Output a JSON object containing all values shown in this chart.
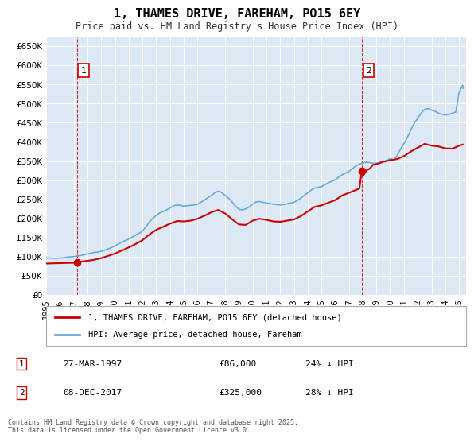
{
  "title": "1, THAMES DRIVE, FAREHAM, PO15 6EY",
  "subtitle": "Price paid vs. HM Land Registry's House Price Index (HPI)",
  "ylabel_ticks": [
    "£0",
    "£50K",
    "£100K",
    "£150K",
    "£200K",
    "£250K",
    "£300K",
    "£350K",
    "£400K",
    "£450K",
    "£500K",
    "£550K",
    "£600K",
    "£650K"
  ],
  "ytick_values": [
    0,
    50000,
    100000,
    150000,
    200000,
    250000,
    300000,
    350000,
    400000,
    450000,
    500000,
    550000,
    600000,
    650000
  ],
  "ylim": [
    0,
    675000
  ],
  "xlim_start": 1995.0,
  "xlim_end": 2025.5,
  "background_color": "#dce9f5",
  "plot_bg_color": "#dce9f5",
  "hpi_line_color": "#6aa8d8",
  "price_line_color": "#cc0000",
  "marker_color": "#cc0000",
  "vline_color": "#cc0000",
  "transaction1": {
    "date_label": "27-MAR-1997",
    "date_num": 1997.23,
    "price": 86000,
    "note": "24% ↓ HPI",
    "marker_num": 1
  },
  "transaction2": {
    "date_label": "08-DEC-2017",
    "date_num": 2017.93,
    "price": 325000,
    "note": "28% ↓ HPI",
    "marker_num": 2
  },
  "legend_line1": "1, THAMES DRIVE, FAREHAM, PO15 6EY (detached house)",
  "legend_line2": "HPI: Average price, detached house, Fareham",
  "footer": "Contains HM Land Registry data © Crown copyright and database right 2025.\nThis data is licensed under the Open Government Licence v3.0.",
  "hpi_data": [
    [
      1995.0,
      97000
    ],
    [
      1995.25,
      96500
    ],
    [
      1995.5,
      96000
    ],
    [
      1995.75,
      95800
    ],
    [
      1996.0,
      96500
    ],
    [
      1996.25,
      97000
    ],
    [
      1996.5,
      98500
    ],
    [
      1996.75,
      99500
    ],
    [
      1997.0,
      100000
    ],
    [
      1997.25,
      101500
    ],
    [
      1997.5,
      103000
    ],
    [
      1997.75,
      105000
    ],
    [
      1998.0,
      107000
    ],
    [
      1998.25,
      109000
    ],
    [
      1998.5,
      111000
    ],
    [
      1998.75,
      112000
    ],
    [
      1999.0,
      114000
    ],
    [
      1999.25,
      117000
    ],
    [
      1999.5,
      120000
    ],
    [
      1999.75,
      124000
    ],
    [
      2000.0,
      128000
    ],
    [
      2000.25,
      133000
    ],
    [
      2000.5,
      138000
    ],
    [
      2000.75,
      142000
    ],
    [
      2001.0,
      146000
    ],
    [
      2001.25,
      151000
    ],
    [
      2001.5,
      156000
    ],
    [
      2001.75,
      161000
    ],
    [
      2002.0,
      167000
    ],
    [
      2002.25,
      178000
    ],
    [
      2002.5,
      190000
    ],
    [
      2002.75,
      200000
    ],
    [
      2003.0,
      208000
    ],
    [
      2003.25,
      214000
    ],
    [
      2003.5,
      218000
    ],
    [
      2003.75,
      222000
    ],
    [
      2004.0,
      227000
    ],
    [
      2004.25,
      233000
    ],
    [
      2004.5,
      235000
    ],
    [
      2004.75,
      234000
    ],
    [
      2005.0,
      232000
    ],
    [
      2005.25,
      233000
    ],
    [
      2005.5,
      234000
    ],
    [
      2005.75,
      235000
    ],
    [
      2006.0,
      237000
    ],
    [
      2006.25,
      242000
    ],
    [
      2006.5,
      248000
    ],
    [
      2006.75,
      254000
    ],
    [
      2007.0,
      260000
    ],
    [
      2007.25,
      267000
    ],
    [
      2007.5,
      271000
    ],
    [
      2007.75,
      268000
    ],
    [
      2008.0,
      260000
    ],
    [
      2008.25,
      253000
    ],
    [
      2008.5,
      243000
    ],
    [
      2008.75,
      232000
    ],
    [
      2009.0,
      224000
    ],
    [
      2009.25,
      222000
    ],
    [
      2009.5,
      225000
    ],
    [
      2009.75,
      230000
    ],
    [
      2010.0,
      237000
    ],
    [
      2010.25,
      243000
    ],
    [
      2010.5,
      244000
    ],
    [
      2010.75,
      242000
    ],
    [
      2011.0,
      240000
    ],
    [
      2011.25,
      239000
    ],
    [
      2011.5,
      237000
    ],
    [
      2011.75,
      236000
    ],
    [
      2012.0,
      235000
    ],
    [
      2012.25,
      236000
    ],
    [
      2012.5,
      238000
    ],
    [
      2012.75,
      240000
    ],
    [
      2013.0,
      242000
    ],
    [
      2013.25,
      247000
    ],
    [
      2013.5,
      253000
    ],
    [
      2013.75,
      260000
    ],
    [
      2014.0,
      267000
    ],
    [
      2014.25,
      274000
    ],
    [
      2014.5,
      279000
    ],
    [
      2014.75,
      281000
    ],
    [
      2015.0,
      283000
    ],
    [
      2015.25,
      288000
    ],
    [
      2015.5,
      293000
    ],
    [
      2015.75,
      297000
    ],
    [
      2016.0,
      301000
    ],
    [
      2016.25,
      308000
    ],
    [
      2016.5,
      314000
    ],
    [
      2016.75,
      318000
    ],
    [
      2017.0,
      323000
    ],
    [
      2017.25,
      330000
    ],
    [
      2017.5,
      337000
    ],
    [
      2017.75,
      342000
    ],
    [
      2018.0,
      345000
    ],
    [
      2018.25,
      347000
    ],
    [
      2018.5,
      346000
    ],
    [
      2018.75,
      344000
    ],
    [
      2019.0,
      344000
    ],
    [
      2019.25,
      347000
    ],
    [
      2019.5,
      349000
    ],
    [
      2019.75,
      352000
    ],
    [
      2020.0,
      356000
    ],
    [
      2020.25,
      353000
    ],
    [
      2020.5,
      365000
    ],
    [
      2020.75,
      382000
    ],
    [
      2021.0,
      396000
    ],
    [
      2021.25,
      413000
    ],
    [
      2021.5,
      432000
    ],
    [
      2021.75,
      450000
    ],
    [
      2022.0,
      462000
    ],
    [
      2022.25,
      476000
    ],
    [
      2022.5,
      485000
    ],
    [
      2022.75,
      487000
    ],
    [
      2023.0,
      483000
    ],
    [
      2023.25,
      480000
    ],
    [
      2023.5,
      475000
    ],
    [
      2023.75,
      472000
    ],
    [
      2024.0,
      470000
    ],
    [
      2024.25,
      472000
    ],
    [
      2024.5,
      475000
    ],
    [
      2024.75,
      478000
    ],
    [
      2025.0,
      530000
    ],
    [
      2025.25,
      548000
    ],
    [
      2025.3,
      540000
    ]
  ],
  "price_data": [
    [
      1995.0,
      82000
    ],
    [
      1995.5,
      82500
    ],
    [
      1996.0,
      83000
    ],
    [
      1996.5,
      83500
    ],
    [
      1997.0,
      84000
    ],
    [
      1997.23,
      86000
    ],
    [
      1997.5,
      87000
    ],
    [
      1998.0,
      89000
    ],
    [
      1998.5,
      92000
    ],
    [
      1999.0,
      96000
    ],
    [
      1999.5,
      102000
    ],
    [
      2000.0,
      108000
    ],
    [
      2000.5,
      116000
    ],
    [
      2001.0,
      124000
    ],
    [
      2001.5,
      133000
    ],
    [
      2002.0,
      143000
    ],
    [
      2002.5,
      158000
    ],
    [
      2003.0,
      170000
    ],
    [
      2003.5,
      178000
    ],
    [
      2004.0,
      186000
    ],
    [
      2004.5,
      193000
    ],
    [
      2005.0,
      192000
    ],
    [
      2005.5,
      194000
    ],
    [
      2006.0,
      199000
    ],
    [
      2006.5,
      207000
    ],
    [
      2007.0,
      216000
    ],
    [
      2007.5,
      222000
    ],
    [
      2008.0,
      213000
    ],
    [
      2008.5,
      198000
    ],
    [
      2009.0,
      184000
    ],
    [
      2009.5,
      183000
    ],
    [
      2010.0,
      194000
    ],
    [
      2010.5,
      199000
    ],
    [
      2011.0,
      196000
    ],
    [
      2011.5,
      192000
    ],
    [
      2012.0,
      191000
    ],
    [
      2012.5,
      194000
    ],
    [
      2013.0,
      197000
    ],
    [
      2013.5,
      206000
    ],
    [
      2014.0,
      218000
    ],
    [
      2014.5,
      230000
    ],
    [
      2015.0,
      234000
    ],
    [
      2015.5,
      241000
    ],
    [
      2016.0,
      248000
    ],
    [
      2016.5,
      260000
    ],
    [
      2017.0,
      267000
    ],
    [
      2017.75,
      278000
    ],
    [
      2017.93,
      325000
    ],
    [
      2018.0,
      310000
    ],
    [
      2018.25,
      325000
    ],
    [
      2018.5,
      330000
    ],
    [
      2018.75,
      340000
    ],
    [
      2019.0,
      342000
    ],
    [
      2019.5,
      348000
    ],
    [
      2020.0,
      352000
    ],
    [
      2020.5,
      355000
    ],
    [
      2021.0,
      363000
    ],
    [
      2021.5,
      375000
    ],
    [
      2022.0,
      385000
    ],
    [
      2022.5,
      395000
    ],
    [
      2023.0,
      390000
    ],
    [
      2023.5,
      388000
    ],
    [
      2024.0,
      383000
    ],
    [
      2024.5,
      382000
    ],
    [
      2025.0,
      390000
    ],
    [
      2025.25,
      393000
    ]
  ]
}
